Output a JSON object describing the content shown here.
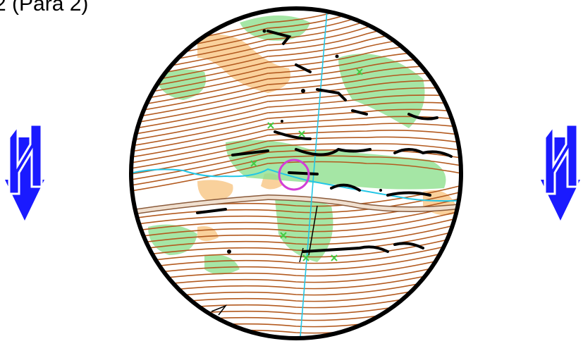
{
  "header": {
    "title": "2 (Para 2)"
  },
  "icons": {
    "north_arrow": "north-arrow-icon",
    "control": "control-circle-icon"
  },
  "colors": {
    "contour": "#b35a1f",
    "open_land": "#f9c98b",
    "green": "#8fe08f",
    "water": "#22c6e6",
    "control": "#d23fd6",
    "north_arrow": "#1a1aff",
    "cliff": "#000000",
    "road": "#c8a98a",
    "green_x": "#44cc44"
  }
}
